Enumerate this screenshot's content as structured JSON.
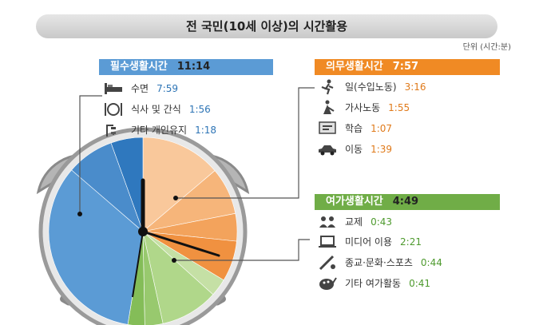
{
  "title": "전 국민(10세 이상)의 시간활용",
  "unit": "단위 (시간:분)",
  "colors": {
    "essential": "#5b9bd5",
    "obligatory": "#f08a24",
    "leisure": "#70ad47"
  },
  "groups": [
    {
      "label": "필수생활시간",
      "total": "11:14",
      "items": [
        {
          "label": "수면",
          "value": "7:59",
          "icon": "bed-icon"
        },
        {
          "label": "식사 및 간식",
          "value": "1:56",
          "icon": "dining-icon"
        },
        {
          "label": "기타 개인유지",
          "value": "1:18",
          "icon": "shower-icon"
        }
      ]
    },
    {
      "label": "의무생활시간",
      "total": "7:57",
      "items": [
        {
          "label": "일(수입노동)",
          "value": "3:16",
          "icon": "worker-icon"
        },
        {
          "label": "가사노동",
          "value": "1:55",
          "icon": "housework-icon"
        },
        {
          "label": "학습",
          "value": "1:07",
          "icon": "study-icon"
        },
        {
          "label": "이동",
          "value": "1:39",
          "icon": "car-icon"
        }
      ]
    },
    {
      "label": "여가생활시간",
      "total": "4:49",
      "items": [
        {
          "label": "교제",
          "value": "0:43",
          "icon": "people-icon"
        },
        {
          "label": "미디어 이용",
          "value": "2:21",
          "icon": "laptop-icon"
        },
        {
          "label": "종교·문화·스포츠",
          "value": "0:44",
          "icon": "sports-icon"
        },
        {
          "label": "기타 여가활동",
          "value": "0:41",
          "icon": "palette-icon"
        }
      ]
    }
  ],
  "chart_data": {
    "type": "pie",
    "title": "전 국민(10세 이상)의 시간활용",
    "unit": "시간:분",
    "series": [
      {
        "name": "필수생활시간",
        "total_minutes": 674,
        "slices": [
          {
            "label": "수면",
            "minutes": 479
          },
          {
            "label": "식사 및 간식",
            "minutes": 116
          },
          {
            "label": "기타 개인유지",
            "minutes": 78
          }
        ]
      },
      {
        "name": "의무생활시간",
        "total_minutes": 477,
        "slices": [
          {
            "label": "일(수입노동)",
            "minutes": 196
          },
          {
            "label": "가사노동",
            "minutes": 115
          },
          {
            "label": "학습",
            "minutes": 67
          },
          {
            "label": "이동",
            "minutes": 99
          }
        ]
      },
      {
        "name": "여가생활시간",
        "total_minutes": 289,
        "slices": [
          {
            "label": "교제",
            "minutes": 43
          },
          {
            "label": "미디어 이용",
            "minutes": 141
          },
          {
            "label": "종교·문화·스포츠",
            "minutes": 44
          },
          {
            "label": "기타 여가활동",
            "minutes": 41
          }
        ]
      }
    ]
  }
}
